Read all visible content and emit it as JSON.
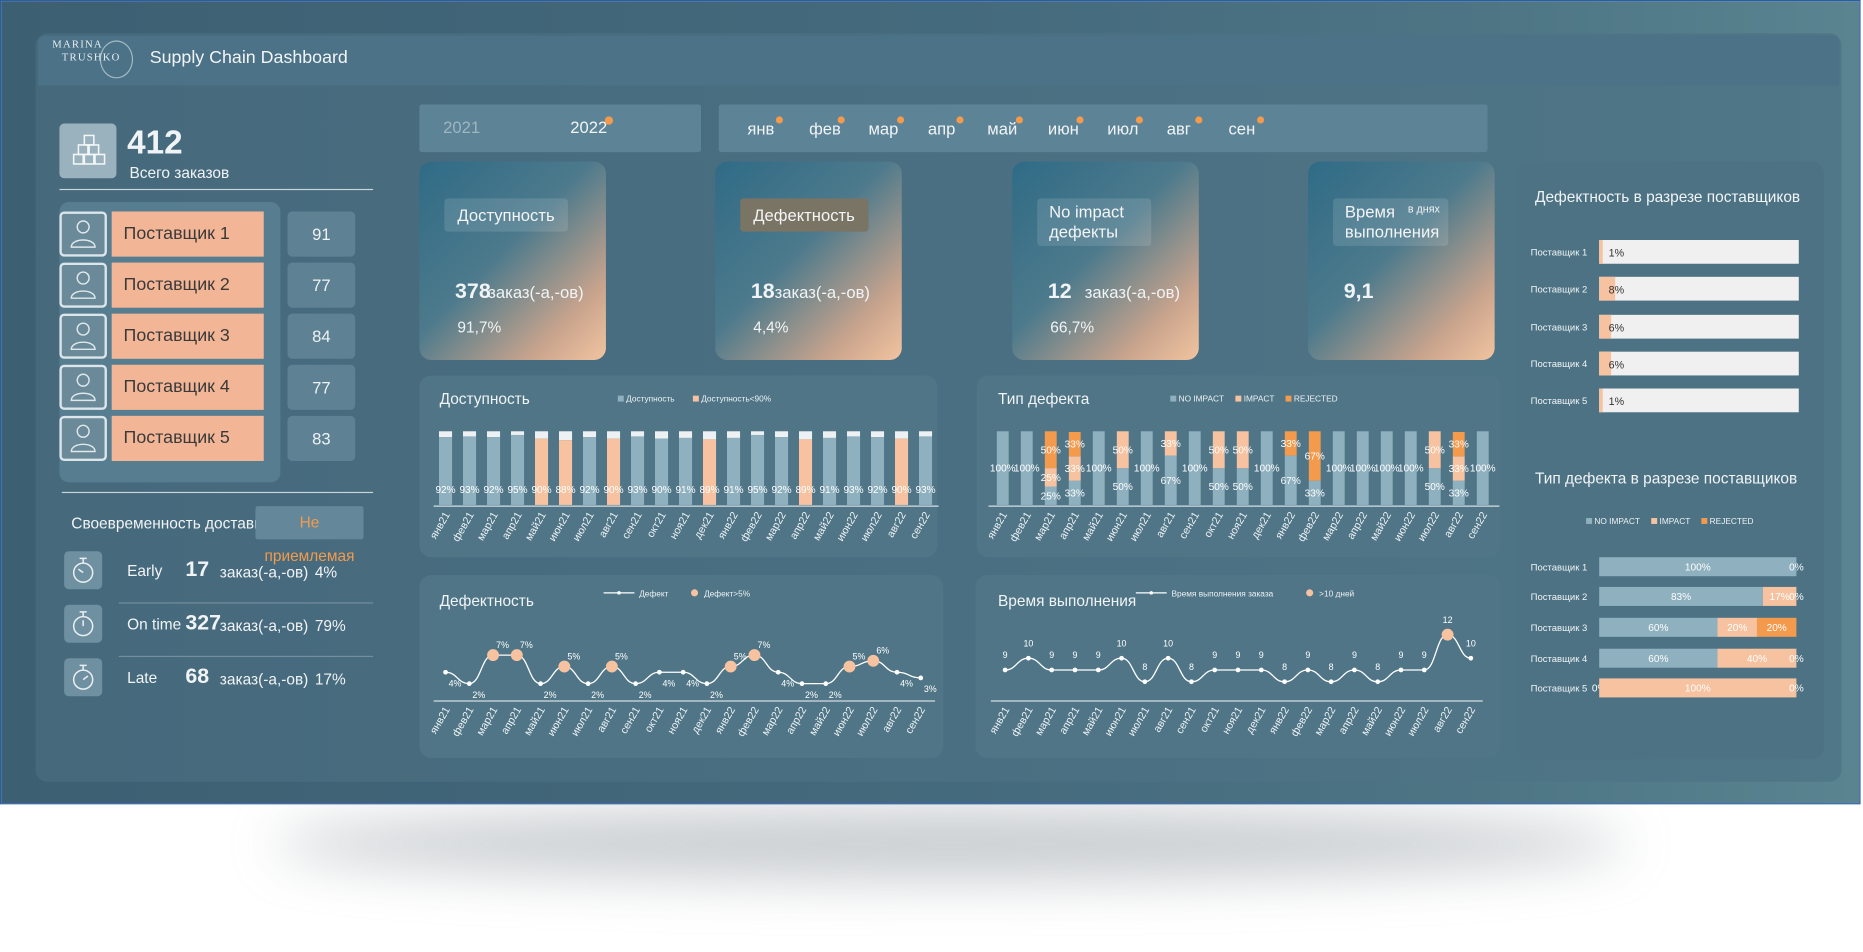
{
  "header": {
    "logo_line1": "MARINA",
    "logo_line2": "TRUSHKO",
    "title": "Supply Chain Dashboard"
  },
  "years": [
    "2021",
    "2022"
  ],
  "months": [
    "янв",
    "фев",
    "мар",
    "апр",
    "май",
    "июн",
    "июл",
    "авг",
    "сен"
  ],
  "total": {
    "value": "412",
    "label": "Всего заказов"
  },
  "suppliers": [
    {
      "name": "Поставщик 1",
      "orders": "91"
    },
    {
      "name": "Поставщик 2",
      "orders": "77"
    },
    {
      "name": "Поставщик 3",
      "orders": "84"
    },
    {
      "name": "Поставщик 4",
      "orders": "77"
    },
    {
      "name": "Поставщик 5",
      "orders": "83"
    }
  ],
  "delivery": {
    "title": "Своевременность доставки",
    "status": "Не приемлемая",
    "rows": [
      {
        "label": "Early",
        "count": "17",
        "unit": "заказ(-а,-ов)",
        "pct": "4%"
      },
      {
        "label": "On time",
        "count": "327",
        "unit": "заказ(-а,-ов)",
        "pct": "79%"
      },
      {
        "label": "Late",
        "count": "68",
        "unit": "заказ(-а,-ов)",
        "pct": "17%"
      }
    ]
  },
  "kpis": [
    {
      "title": "Доступность",
      "value": "378",
      "unit": "заказ(-а,-ов)",
      "pct": "91,7%"
    },
    {
      "title": "Дефектность",
      "value": "18",
      "unit": "заказ(-а,-ов)",
      "pct": "4,4%"
    },
    {
      "title_line1": "No impact",
      "title_line2": "дефекты",
      "value": "12",
      "unit": "заказ(-а,-ов)",
      "pct": "66,7%"
    },
    {
      "title_line1": "Время",
      "title_line2": "выполнения",
      "note": "в днях",
      "value": "9,1"
    }
  ],
  "chart_data": [
    {
      "id": "availability",
      "type": "bar",
      "title": "Доступность",
      "legend": [
        "Доступность",
        "Доступность<90%"
      ],
      "categories": [
        "янв21",
        "фев21",
        "мар21",
        "апр21",
        "май21",
        "июн21",
        "июл21",
        "авг21",
        "сен21",
        "окт21",
        "ноя21",
        "дек21",
        "янв22",
        "фев22",
        "мар22",
        "апр22",
        "май22",
        "июн22",
        "июл22",
        "авг22",
        "сен22"
      ],
      "values": [
        92,
        93,
        92,
        95,
        90,
        88,
        92,
        90,
        93,
        90,
        91,
        89,
        91,
        95,
        92,
        89,
        91,
        93,
        92,
        90,
        93
      ],
      "labels": [
        "92%",
        "93%",
        "92%",
        "95%",
        "90%",
        "88%",
        "92%",
        "90%",
        "93%",
        "90%",
        "91%",
        "89%",
        "91%",
        "95%",
        "92%",
        "89%",
        "91%",
        "93%",
        "92%",
        "90%",
        "93%"
      ],
      "below_threshold": [
        false,
        false,
        false,
        false,
        true,
        true,
        false,
        true,
        false,
        false,
        false,
        true,
        false,
        false,
        false,
        true,
        false,
        false,
        false,
        true,
        false
      ],
      "colors": {
        "normal": "#8fb0bf",
        "below": "#f6c29f",
        "rest": "#eef1f3"
      }
    },
    {
      "id": "defect_type",
      "type": "bar",
      "title": "Тип дефекта",
      "legend": [
        "NO IMPACT",
        "IMPACT",
        "REJECTED"
      ],
      "categories": [
        "янв21",
        "фев21",
        "мар21",
        "апр21",
        "май21",
        "июн21",
        "июл21",
        "авг21",
        "сен21",
        "окт21",
        "ноя21",
        "дек21",
        "янв22",
        "фев22",
        "мар22",
        "апр22",
        "май22",
        "июн22",
        "июл22",
        "авг22",
        "сен22"
      ],
      "series": [
        {
          "name": "NO IMPACT",
          "values": [
            100,
            100,
            25,
            33,
            100,
            50,
            100,
            67,
            100,
            50,
            50,
            100,
            67,
            33,
            100,
            100,
            100,
            100,
            50,
            33,
            100
          ]
        },
        {
          "name": "IMPACT",
          "values": [
            0,
            0,
            25,
            33,
            0,
            50,
            0,
            33,
            0,
            50,
            50,
            0,
            0,
            0,
            0,
            0,
            0,
            0,
            50,
            33,
            0
          ]
        },
        {
          "name": "REJECTED",
          "values": [
            0,
            0,
            50,
            33,
            0,
            0,
            0,
            0,
            0,
            0,
            0,
            0,
            33,
            67,
            0,
            0,
            0,
            0,
            0,
            33,
            0
          ]
        }
      ],
      "colors": {
        "NO IMPACT": "#8fb0bf",
        "IMPACT": "#f6c29f",
        "REJECTED": "#f39a4d"
      }
    },
    {
      "id": "defects",
      "type": "line",
      "title": "Дефектность",
      "legend": [
        "Дефект",
        "Дефект>5%"
      ],
      "categories": [
        "янв21",
        "фев21",
        "мар21",
        "апр21",
        "май21",
        "июн21",
        "июл21",
        "авг21",
        "сен21",
        "окт21",
        "ноя21",
        "дек21",
        "янв22",
        "фев22",
        "мар22",
        "апр22",
        "май22",
        "июн22",
        "июл22",
        "авг22",
        "сен22"
      ],
      "values": [
        4,
        2,
        7,
        7,
        2,
        5,
        2,
        5,
        2,
        4,
        4,
        2,
        5,
        7,
        4,
        2,
        2,
        5,
        6,
        4,
        3
      ],
      "labels": [
        "4%",
        "2%",
        "7%",
        "7%",
        "2%",
        "5%",
        "2%",
        "5%",
        "2%",
        "4%",
        "4%",
        "2%",
        "5%",
        "7%",
        "4%",
        "2%",
        "2%",
        "5%",
        "6%",
        "4%",
        "3%"
      ],
      "threshold": 5,
      "colors": {
        "line": "#ffffff",
        "highlight": "#f6c29f"
      }
    },
    {
      "id": "lead_time",
      "type": "line",
      "title": "Время выполнения",
      "legend": [
        "Время выполнения заказа",
        ">10 дней"
      ],
      "categories": [
        "янв21",
        "фев21",
        "мар21",
        "апр21",
        "май21",
        "июн21",
        "июл21",
        "авг21",
        "сен21",
        "окт21",
        "ноя21",
        "дек21",
        "янв22",
        "фев22",
        "мар22",
        "апр22",
        "май22",
        "июн22",
        "июл22",
        "авг22",
        "сен22"
      ],
      "values": [
        9,
        10,
        9,
        9,
        9,
        10,
        8,
        10,
        8,
        9,
        9,
        9,
        8,
        9,
        8,
        9,
        8,
        9,
        9,
        12,
        10
      ],
      "threshold": 10,
      "colors": {
        "line": "#ffffff",
        "highlight": "#f6c29f"
      }
    },
    {
      "id": "supplier_defects",
      "type": "bar",
      "orientation": "horizontal",
      "title": "Дефектность в разрезе поставщиков",
      "categories": [
        "Поставщик 1",
        "Поставщик 2",
        "Поставщик 3",
        "Поставщик 4",
        "Поставщик 5"
      ],
      "values": [
        1,
        8,
        6,
        6,
        1
      ],
      "labels": [
        "1%",
        "8%",
        "6%",
        "6%",
        "1%"
      ],
      "xlim": [
        0,
        100
      ],
      "colors": {
        "bar": "#f6c29f",
        "track": "#f0f0f0"
      }
    },
    {
      "id": "supplier_defect_types",
      "type": "bar",
      "orientation": "horizontal",
      "stacked": true,
      "title": "Тип дефекта в разрезе поставщиков",
      "legend": [
        "NO IMPACT",
        "IMPACT",
        "REJECTED"
      ],
      "categories": [
        "Поставщик 1",
        "Поставщик 2",
        "Поставщик 3",
        "Поставщик 4",
        "Поставщик 5"
      ],
      "series": [
        {
          "name": "NO IMPACT",
          "values": [
            100,
            83,
            60,
            60,
            0
          ],
          "labels": [
            "100%",
            "83%",
            "60%",
            "60%",
            "0%"
          ]
        },
        {
          "name": "IMPACT",
          "values": [
            0,
            17,
            20,
            40,
            100
          ],
          "labels": [
            "",
            "17%",
            "20%",
            "40%",
            "100%"
          ]
        },
        {
          "name": "REJECTED",
          "values": [
            0,
            0,
            20,
            0,
            0
          ],
          "labels": [
            "0%",
            "0%",
            "20%",
            "0%",
            "0%"
          ]
        }
      ],
      "colors": {
        "NO IMPACT": "#8fb0bf",
        "IMPACT": "#f6c29f",
        "REJECTED": "#f39a4d"
      }
    }
  ]
}
